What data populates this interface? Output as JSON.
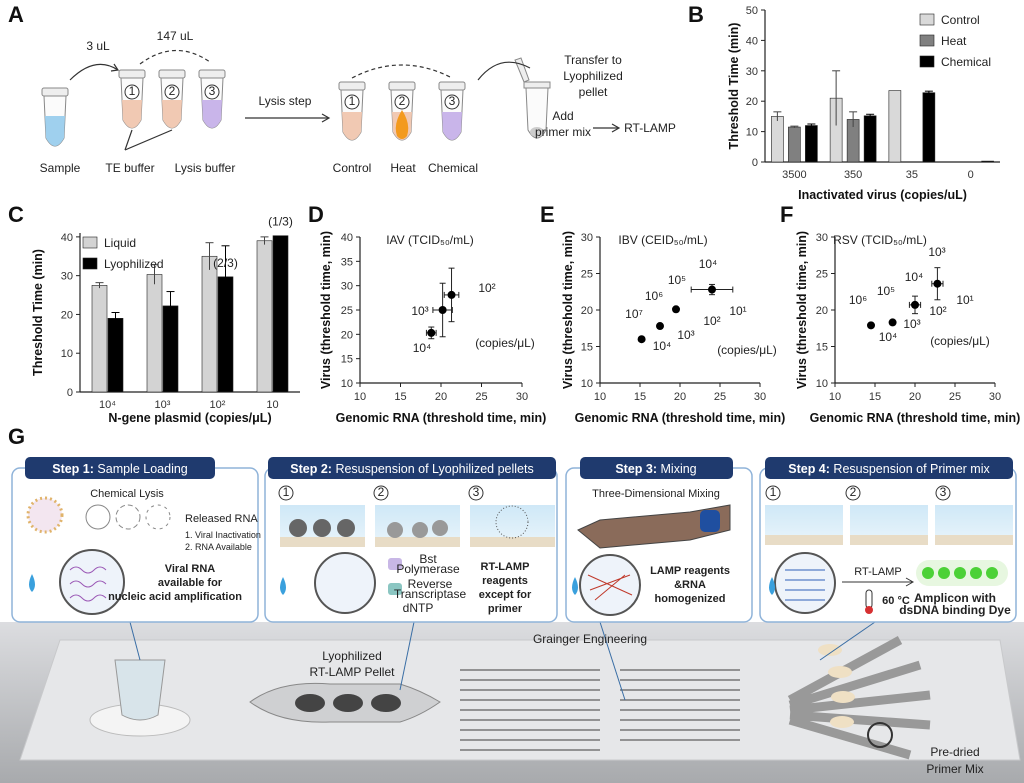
{
  "figure": {
    "a": {
      "letter": "A",
      "volume1": "3 uL",
      "volume2": "147 uL",
      "tube_numbers": [
        "1",
        "2",
        "3"
      ],
      "sample": "Sample",
      "te_buffer": "TE buffer",
      "lysis_buffer": "Lysis buffer",
      "lysis_step": "Lysis step",
      "conditions": [
        "Control",
        "Heat",
        "Chemical"
      ],
      "transfer": [
        "Transfer to",
        "Lyophilized",
        "pellet"
      ],
      "add": [
        "Add",
        "primer mix"
      ],
      "rt_lamp": "RT-LAMP"
    },
    "g": {
      "letter": "G",
      "steps": [
        {
          "step": "Step 1:",
          "title": "Sample Loading"
        },
        {
          "step": "Step 2:",
          "title": "Resuspension of Lyophilized pellets"
        },
        {
          "step": "Step 3:",
          "title": "Mixing"
        },
        {
          "step": "Step 4:",
          "title": "Resuspension of Primer mix"
        }
      ],
      "step1": {
        "lysis": "Chemical Lysis",
        "released": "Released RNA",
        "list": [
          "1. Viral Inactivation",
          "2. RNA Available"
        ],
        "note": [
          "Viral RNA",
          "available for",
          "nucleic acid amplification"
        ]
      },
      "step2": {
        "numbers": [
          "1",
          "2",
          "3"
        ],
        "enzymes": [
          "Bst",
          "Polymerase",
          "Reverse",
          "Transcriptase",
          "dNTP"
        ],
        "note": [
          "RT-LAMP",
          "reagents",
          "except for",
          "primer"
        ]
      },
      "step3": {
        "mixing": "Three-Dimensional Mixing",
        "note": [
          "LAMP reagents",
          "&RNA",
          "homogenized"
        ]
      },
      "step4": {
        "numbers": [
          "1",
          "2",
          "3"
        ],
        "rt_lamp": "RT-LAMP",
        "temp": "60 °C",
        "note": [
          "Amplicon with",
          "dsDNA binding Dye"
        ]
      },
      "device": {
        "watermark": "Grainger Engineering",
        "pellet": [
          "Lyophilized",
          "RT-LAMP Pellet"
        ],
        "primer": [
          "Pre-dried",
          "Primer Mix"
        ]
      }
    }
  },
  "chart_data": [
    {
      "type": "bar",
      "letter": "B",
      "ylabel": "Threshold Time (min)",
      "xlabel": "Inactivated virus (copies/uL)",
      "categories": [
        "3500",
        "350",
        "35",
        "0"
      ],
      "series": [
        {
          "name": "Control",
          "color": "#d9d9d9",
          "values": [
            15,
            21,
            23.5,
            null
          ],
          "errors": [
            1.5,
            9,
            null,
            null
          ]
        },
        {
          "name": "Heat",
          "color": "#808080",
          "values": [
            11.5,
            14,
            null,
            null
          ],
          "errors": [
            0.3,
            2.5,
            null,
            null
          ]
        },
        {
          "name": "Chemical",
          "color": "#000000",
          "values": [
            12,
            15.2,
            22.8,
            0.3
          ],
          "errors": [
            0.5,
            0.5,
            0.5,
            null
          ]
        }
      ],
      "ylim": [
        0,
        50
      ],
      "yticks": [
        0,
        10,
        20,
        30,
        40,
        50
      ],
      "legend": "upper right"
    },
    {
      "type": "bar",
      "letter": "C",
      "ylabel": "Threshold Time (min)",
      "xlabel": "N-gene plasmid  (copies/μL)",
      "categories": [
        "10⁴",
        "10³",
        "10²",
        "10"
      ],
      "series": [
        {
          "name": "Liquid",
          "color": "#d3d3d3",
          "values": [
            27.5,
            30.3,
            35,
            39
          ],
          "errors": [
            0.7,
            2.5,
            3.5,
            1
          ]
        },
        {
          "name": "Lyophilized",
          "color": "#000000",
          "values": [
            19,
            22.2,
            29.7,
            40.3
          ],
          "errors": [
            1.5,
            3.7,
            8,
            null
          ]
        }
      ],
      "annotations": [
        {
          "text": "(2/3)",
          "category": 2
        },
        {
          "text": "(1/3)",
          "category": 3
        }
      ],
      "ylim": [
        0,
        41
      ],
      "yticks": [
        0,
        10,
        20,
        30,
        40
      ],
      "legend": "upper left"
    },
    {
      "type": "scatter",
      "letter": "D",
      "title": "IAV (TCID₅₀/mL)",
      "unit": "(copies/μL)",
      "xlabel": "Genomic RNA (threshold time, min)",
      "ylabel": "Virus (threshold time, min)",
      "x": [
        18.8,
        20.2,
        21.3
      ],
      "y": [
        20.3,
        25,
        28.1
      ],
      "xerr": [
        0.6,
        1.2,
        0.9
      ],
      "yerr": [
        1.2,
        5.5,
        5.5
      ],
      "labels": [
        "10²",
        "10³",
        "10⁴"
      ],
      "xlim": [
        10,
        30
      ],
      "xticks": [
        10,
        15,
        20,
        25,
        30
      ],
      "ylim": [
        10,
        40
      ],
      "yticks": [
        10,
        15,
        20,
        25,
        30,
        35,
        40
      ],
      "color": "#000000"
    },
    {
      "type": "scatter",
      "letter": "E",
      "title": "IBV (CEID₅₀/mL)",
      "unit": "(copies/μL)",
      "xlabel": "Genomic RNA (threshold time, min)",
      "ylabel": "Virus (threshold time, min)",
      "x": [
        15.2,
        17.5,
        19.5,
        24
      ],
      "y": [
        16,
        17.8,
        20.1,
        22.8
      ],
      "xerr": [
        null,
        null,
        null,
        2.6
      ],
      "yerr": [
        null,
        null,
        null,
        0.7
      ],
      "labels": [
        "10⁴",
        "10⁵",
        "10⁶",
        "10⁷",
        "10¹",
        "10²",
        "10³",
        "10⁴"
      ],
      "xlim": [
        10,
        30
      ],
      "xticks": [
        10,
        15,
        20,
        25,
        30
      ],
      "ylim": [
        10,
        30
      ],
      "yticks": [
        10,
        15,
        20,
        25,
        30
      ],
      "color": "#000000"
    },
    {
      "type": "scatter",
      "letter": "F",
      "title": "RSV (TCID₅₀/mL)",
      "unit": "(copies/μL)",
      "xlabel": "Genomic RNA (threshold time, min)",
      "ylabel": "Virus (threshold time, min)",
      "x": [
        14.5,
        17.2,
        20,
        22.8
      ],
      "y": [
        17.9,
        18.3,
        20.7,
        23.6
      ],
      "xerr": [
        null,
        null,
        0.7,
        0.7
      ],
      "yerr": [
        null,
        null,
        1.2,
        2.2
      ],
      "labels": [
        "10³",
        "10⁴",
        "10⁵",
        "10⁶",
        "10¹",
        "10²",
        "10³",
        "10⁴"
      ],
      "xlim": [
        10,
        30
      ],
      "xticks": [
        10,
        15,
        20,
        25,
        30
      ],
      "ylim": [
        10,
        30
      ],
      "yticks": [
        10,
        15,
        20,
        25,
        30
      ],
      "color": "#000000"
    }
  ]
}
